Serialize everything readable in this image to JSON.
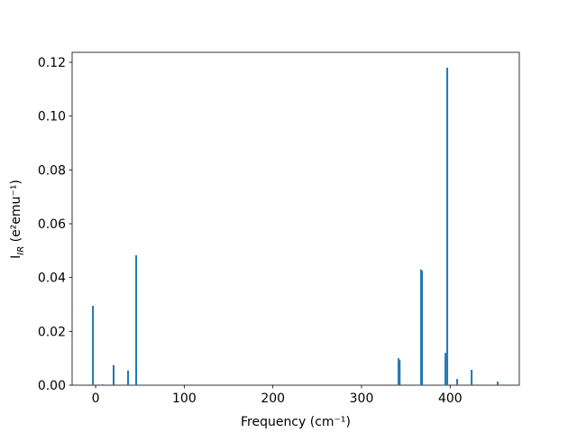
{
  "chart_data": {
    "type": "bar",
    "xlabel": "Frequency (cm⁻¹)",
    "ylabel": {
      "main": "I",
      "sub": "IR",
      "rest": " (e²emu⁻¹)"
    },
    "x": [
      -3,
      8,
      20.3,
      36.6,
      45.8,
      341.8,
      343,
      367.2,
      368.3,
      394.7,
      396.7,
      407.9,
      424.2,
      453.7
    ],
    "values": [
      0.0295,
      0.0003,
      0.0075,
      0.0055,
      0.0483,
      0.01,
      0.0093,
      0.043,
      0.0425,
      0.012,
      0.118,
      0.0023,
      0.0057,
      0.0013
    ],
    "color": "#1f77b4",
    "xlim": [
      -26.5,
      478
    ],
    "ylim": [
      0,
      0.1237
    ],
    "xticks": [
      0,
      100,
      200,
      300,
      400
    ],
    "yticks": [
      {
        "value": 0,
        "label": "0.00"
      },
      {
        "value": 0.02,
        "label": "0.02"
      },
      {
        "value": 0.04,
        "label": "0.04"
      },
      {
        "value": 0.06,
        "label": "0.06"
      },
      {
        "value": 0.08,
        "label": "0.08"
      },
      {
        "value": 0.1,
        "label": "0.10"
      },
      {
        "value": 0.12,
        "label": "0.12"
      }
    ],
    "grid": false
  }
}
